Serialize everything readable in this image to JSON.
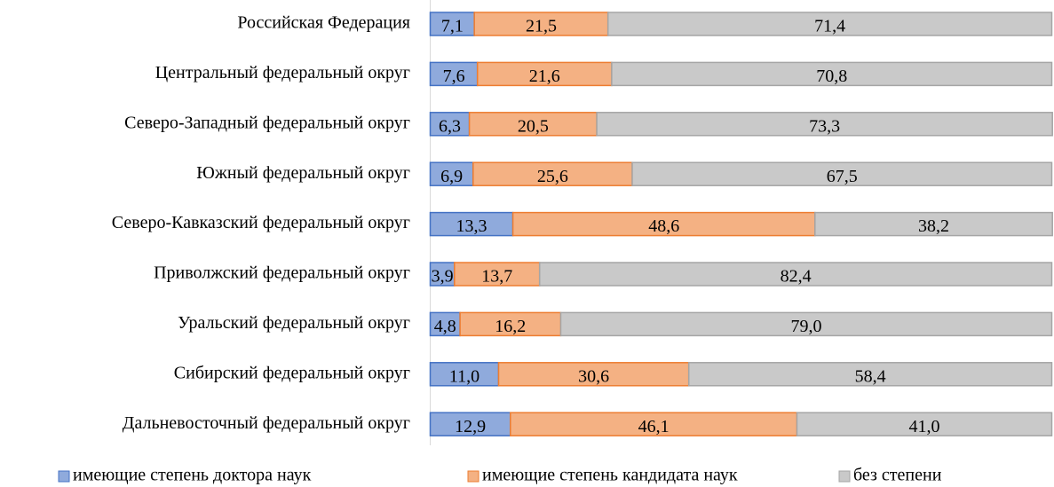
{
  "chart_data": {
    "type": "stacked-bar-horizontal",
    "categories": [
      "Российская Федерация",
      "Центральный федеральный округ",
      "Северо-Западный федеральный округ",
      "Южный федеральный округ",
      "Северо-Кавказский федеральный округ",
      "Приволжский федеральный округ",
      "Уральский федеральный округ",
      "Сибирский федеральный округ",
      "Дальневосточный федеральный округ"
    ],
    "series": [
      {
        "name": "имеющие степень доктора наук",
        "color": "#8faadc",
        "stroke": "#4472c4",
        "values": [
          7.1,
          7.6,
          6.3,
          6.9,
          13.3,
          3.9,
          4.8,
          11.0,
          12.9
        ],
        "value_labels": [
          "7,1",
          "7,6",
          "6,3",
          "6,9",
          "13,3",
          "3,9",
          "4,8",
          "11,0",
          "12,9"
        ]
      },
      {
        "name": "имеющие степень кандидата наук",
        "color": "#f4b183",
        "stroke": "#ed7d31",
        "values": [
          21.5,
          21.6,
          20.5,
          25.6,
          48.6,
          13.7,
          16.2,
          30.6,
          46.1
        ],
        "value_labels": [
          "21,5",
          "21,6",
          "20,5",
          "25,6",
          "48,6",
          "13,7",
          "16,2",
          "30,6",
          "46,1"
        ]
      },
      {
        "name": "без степени",
        "color": "#c9c9c9",
        "stroke": "#a5a5a5",
        "values": [
          71.4,
          70.8,
          73.3,
          67.5,
          38.2,
          82.4,
          79.0,
          58.4,
          41.0
        ],
        "value_labels": [
          "71,4",
          "70,8",
          "73,3",
          "67,5",
          "38,2",
          "82,4",
          "79,0",
          "58,4",
          "41,0"
        ]
      }
    ],
    "xlim": [
      0,
      100
    ],
    "legend": "bottom"
  }
}
